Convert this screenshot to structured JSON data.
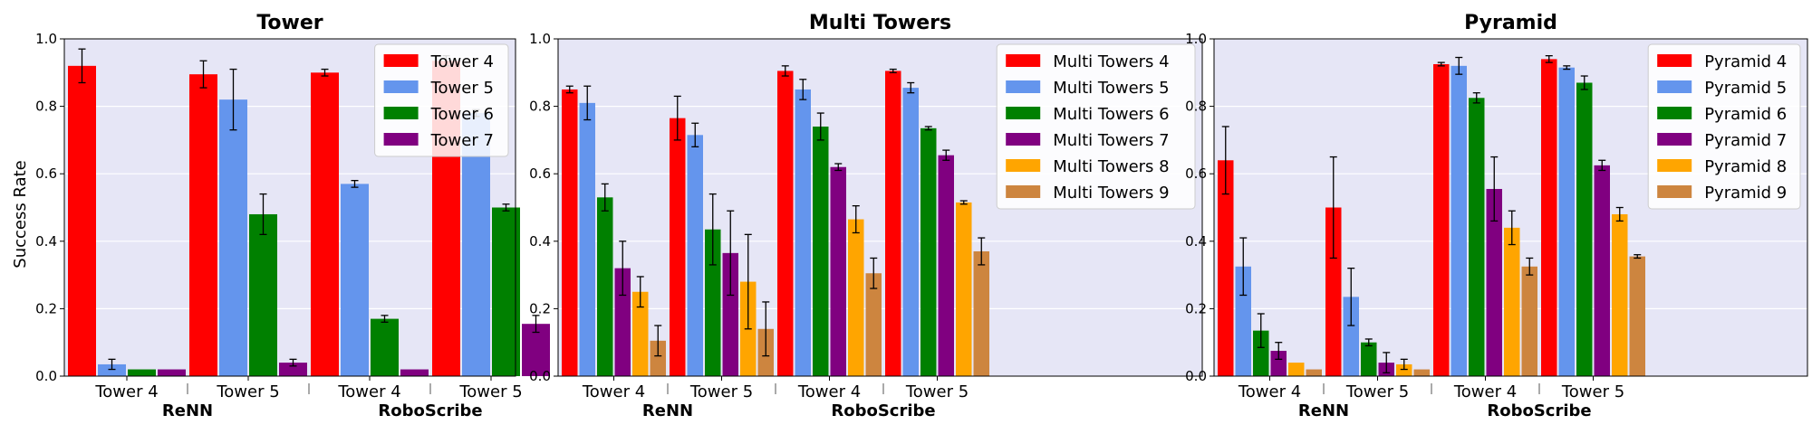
{
  "figure": {
    "ylabel": "Success Rate",
    "methods": [
      "ReNN",
      "RoboScribe"
    ],
    "train_labels": [
      "Tower 4",
      "Tower 5"
    ],
    "colors": [
      "#ff0000",
      "#6495ed",
      "#008000",
      "#800080",
      "#ffa500",
      "#cd853f"
    ]
  },
  "chart_data": [
    {
      "type": "bar",
      "title": "Tower",
      "ylabel": "Success Rate",
      "ylim": [
        0,
        1.0
      ],
      "yticks": [
        0.0,
        0.2,
        0.4,
        0.6,
        0.8,
        1.0
      ],
      "grid": true,
      "legend_position": "top-right",
      "groups": [
        {
          "method": "ReNN",
          "train": "Tower 4"
        },
        {
          "method": "ReNN",
          "train": "Tower 5"
        },
        {
          "method": "RoboScribe",
          "train": "Tower 4"
        },
        {
          "method": "RoboScribe",
          "train": "Tower 5"
        }
      ],
      "series": [
        {
          "name": "Tower 4",
          "values": [
            0.92,
            0.895,
            0.9,
            0.935
          ],
          "errors": [
            0.05,
            0.04,
            0.01,
            0.015
          ]
        },
        {
          "name": "Tower 5",
          "values": [
            0.035,
            0.82,
            0.57,
            0.78
          ],
          "errors": [
            0.015,
            0.09,
            0.01,
            0.01
          ]
        },
        {
          "name": "Tower 6",
          "values": [
            0.02,
            0.48,
            0.17,
            0.5
          ],
          "errors": [
            0.0,
            0.06,
            0.01,
            0.01
          ]
        },
        {
          "name": "Tower 7",
          "values": [
            0.02,
            0.04,
            0.02,
            0.155
          ],
          "errors": [
            0.0,
            0.01,
            0.0,
            0.025
          ]
        }
      ]
    },
    {
      "type": "bar",
      "title": "Multi Towers",
      "ylim": [
        0,
        1.0
      ],
      "yticks": [
        0.0,
        0.2,
        0.4,
        0.6,
        0.8,
        1.0
      ],
      "grid": true,
      "legend_position": "top-right",
      "groups": [
        {
          "method": "ReNN",
          "train": "Tower 4"
        },
        {
          "method": "ReNN",
          "train": "Tower 5"
        },
        {
          "method": "RoboScribe",
          "train": "Tower 4"
        },
        {
          "method": "RoboScribe",
          "train": "Tower 5"
        }
      ],
      "series": [
        {
          "name": "Multi Towers 4",
          "values": [
            0.85,
            0.765,
            0.905,
            0.905
          ],
          "errors": [
            0.01,
            0.065,
            0.015,
            0.005
          ]
        },
        {
          "name": "Multi Towers 5",
          "values": [
            0.81,
            0.715,
            0.85,
            0.855
          ],
          "errors": [
            0.05,
            0.035,
            0.03,
            0.015
          ]
        },
        {
          "name": "Multi Towers 6",
          "values": [
            0.53,
            0.435,
            0.74,
            0.735
          ],
          "errors": [
            0.04,
            0.105,
            0.04,
            0.005
          ]
        },
        {
          "name": "Multi Towers 7",
          "values": [
            0.32,
            0.365,
            0.62,
            0.655
          ],
          "errors": [
            0.08,
            0.125,
            0.01,
            0.015
          ]
        },
        {
          "name": "Multi Towers 8",
          "values": [
            0.25,
            0.28,
            0.465,
            0.515
          ],
          "errors": [
            0.045,
            0.14,
            0.04,
            0.005
          ]
        },
        {
          "name": "Multi Towers 9",
          "values": [
            0.105,
            0.14,
            0.305,
            0.37
          ],
          "errors": [
            0.045,
            0.08,
            0.045,
            0.04
          ]
        }
      ]
    },
    {
      "type": "bar",
      "title": "Pyramid",
      "ylim": [
        0,
        1.0
      ],
      "yticks": [
        0.0,
        0.2,
        0.4,
        0.6,
        0.8,
        1.0
      ],
      "grid": true,
      "legend_position": "top-right",
      "groups": [
        {
          "method": "ReNN",
          "train": "Tower 4"
        },
        {
          "method": "ReNN",
          "train": "Tower 5"
        },
        {
          "method": "RoboScribe",
          "train": "Tower 4"
        },
        {
          "method": "RoboScribe",
          "train": "Tower 5"
        }
      ],
      "series": [
        {
          "name": "Pyramid 4",
          "values": [
            0.64,
            0.5,
            0.925,
            0.94
          ],
          "errors": [
            0.1,
            0.15,
            0.005,
            0.01
          ]
        },
        {
          "name": "Pyramid 5",
          "values": [
            0.325,
            0.235,
            0.92,
            0.915
          ],
          "errors": [
            0.085,
            0.085,
            0.025,
            0.005
          ]
        },
        {
          "name": "Pyramid 6",
          "values": [
            0.135,
            0.1,
            0.825,
            0.87
          ],
          "errors": [
            0.05,
            0.01,
            0.015,
            0.02
          ]
        },
        {
          "name": "Pyramid 7",
          "values": [
            0.075,
            0.04,
            0.555,
            0.625
          ],
          "errors": [
            0.025,
            0.03,
            0.095,
            0.015
          ]
        },
        {
          "name": "Pyramid 8",
          "values": [
            0.04,
            0.035,
            0.44,
            0.48
          ],
          "errors": [
            0.0,
            0.015,
            0.05,
            0.02
          ]
        },
        {
          "name": "Pyramid 9",
          "values": [
            0.02,
            0.02,
            0.325,
            0.355
          ],
          "errors": [
            0.0,
            0.0,
            0.025,
            0.005
          ]
        }
      ]
    }
  ]
}
